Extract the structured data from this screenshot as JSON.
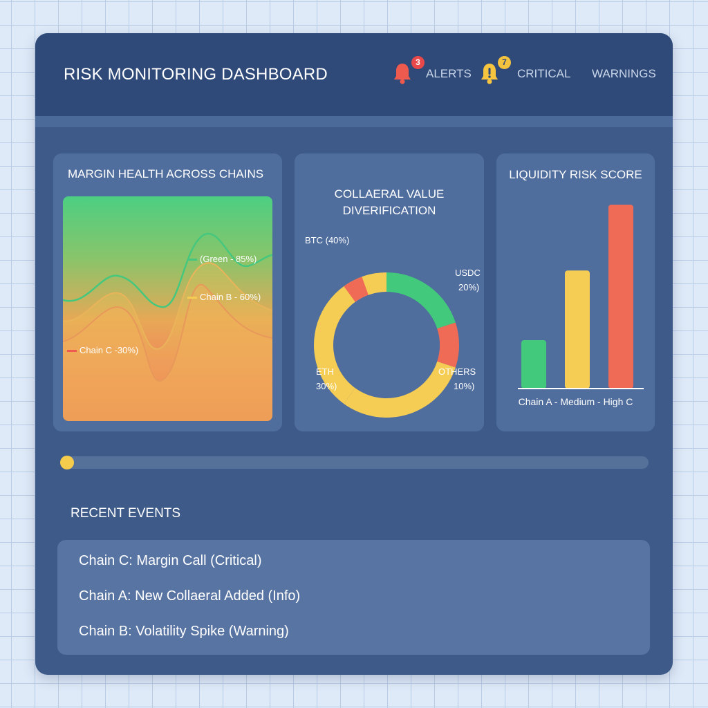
{
  "header": {
    "title": "RISK MONITORING DASHBOARD",
    "alerts": {
      "label": "ALERTS",
      "count": "3"
    },
    "critical": {
      "label": "CRITICAL",
      "count": "7"
    },
    "warnings": {
      "label": "WARNINGS"
    }
  },
  "colors": {
    "header_bg": "#2f4a78",
    "window_bg": "#3d5a89",
    "panel_bg": "#4f6d9d",
    "green": "#43c97c",
    "yellow": "#f5cd54",
    "red": "#ef6b56"
  },
  "icons": {
    "alerts": "bell-icon",
    "critical": "warning-bell-icon"
  },
  "margin_panel": {
    "title": "MARGIN HEALTH ACROSS CHAINS",
    "labels": {
      "green": "(Green - 85%)",
      "chain_b": "Chain B - 60%)",
      "chain_c": "Chain C -30%)"
    }
  },
  "collateral_panel": {
    "title_line1": "COLLAERAL VALUE",
    "title_line2": "DIVERIFICATION",
    "labels": {
      "btc": "BTC (40%)",
      "usdc_1": "USDC",
      "usdc_2": "20%)",
      "eth_1": "ETH",
      "eth_2": "30%)",
      "others_1": "OTHERS",
      "others_2": "10%)"
    }
  },
  "liquidity_panel": {
    "title": "LIQUIDITY RISK SCORE",
    "axis_label": "Chain A - Medium - High C"
  },
  "chart_data": [
    {
      "type": "area",
      "series": [
        {
          "label": "(Green - 85%)",
          "value": 85
        },
        {
          "label": "Chain B - 60%)",
          "value": 60
        },
        {
          "label": "Chain C -30%)",
          "value": 30
        }
      ]
    },
    {
      "type": "pie",
      "slices": [
        {
          "label": "USDC 20%)",
          "value": 20
        },
        {
          "label": "OTHERS 10%)",
          "value": 10
        },
        {
          "label": "ETH 30%)",
          "value": 30
        },
        {
          "label": "BTC (40%)",
          "value": 40
        }
      ]
    },
    {
      "type": "bar",
      "categories": [
        "Chain A",
        "Medium",
        "High C"
      ],
      "values": [
        25,
        61,
        95
      ],
      "ylim": [
        0,
        100
      ]
    }
  ],
  "slider": {
    "value": 0
  },
  "events": {
    "title": "RECENT EVENTS",
    "items": [
      "Chain C: Margin Call (Critical)",
      "Chain A: New Collaeral Added (Info)",
      "Chain B: Volatility Spike (Warning)"
    ]
  }
}
